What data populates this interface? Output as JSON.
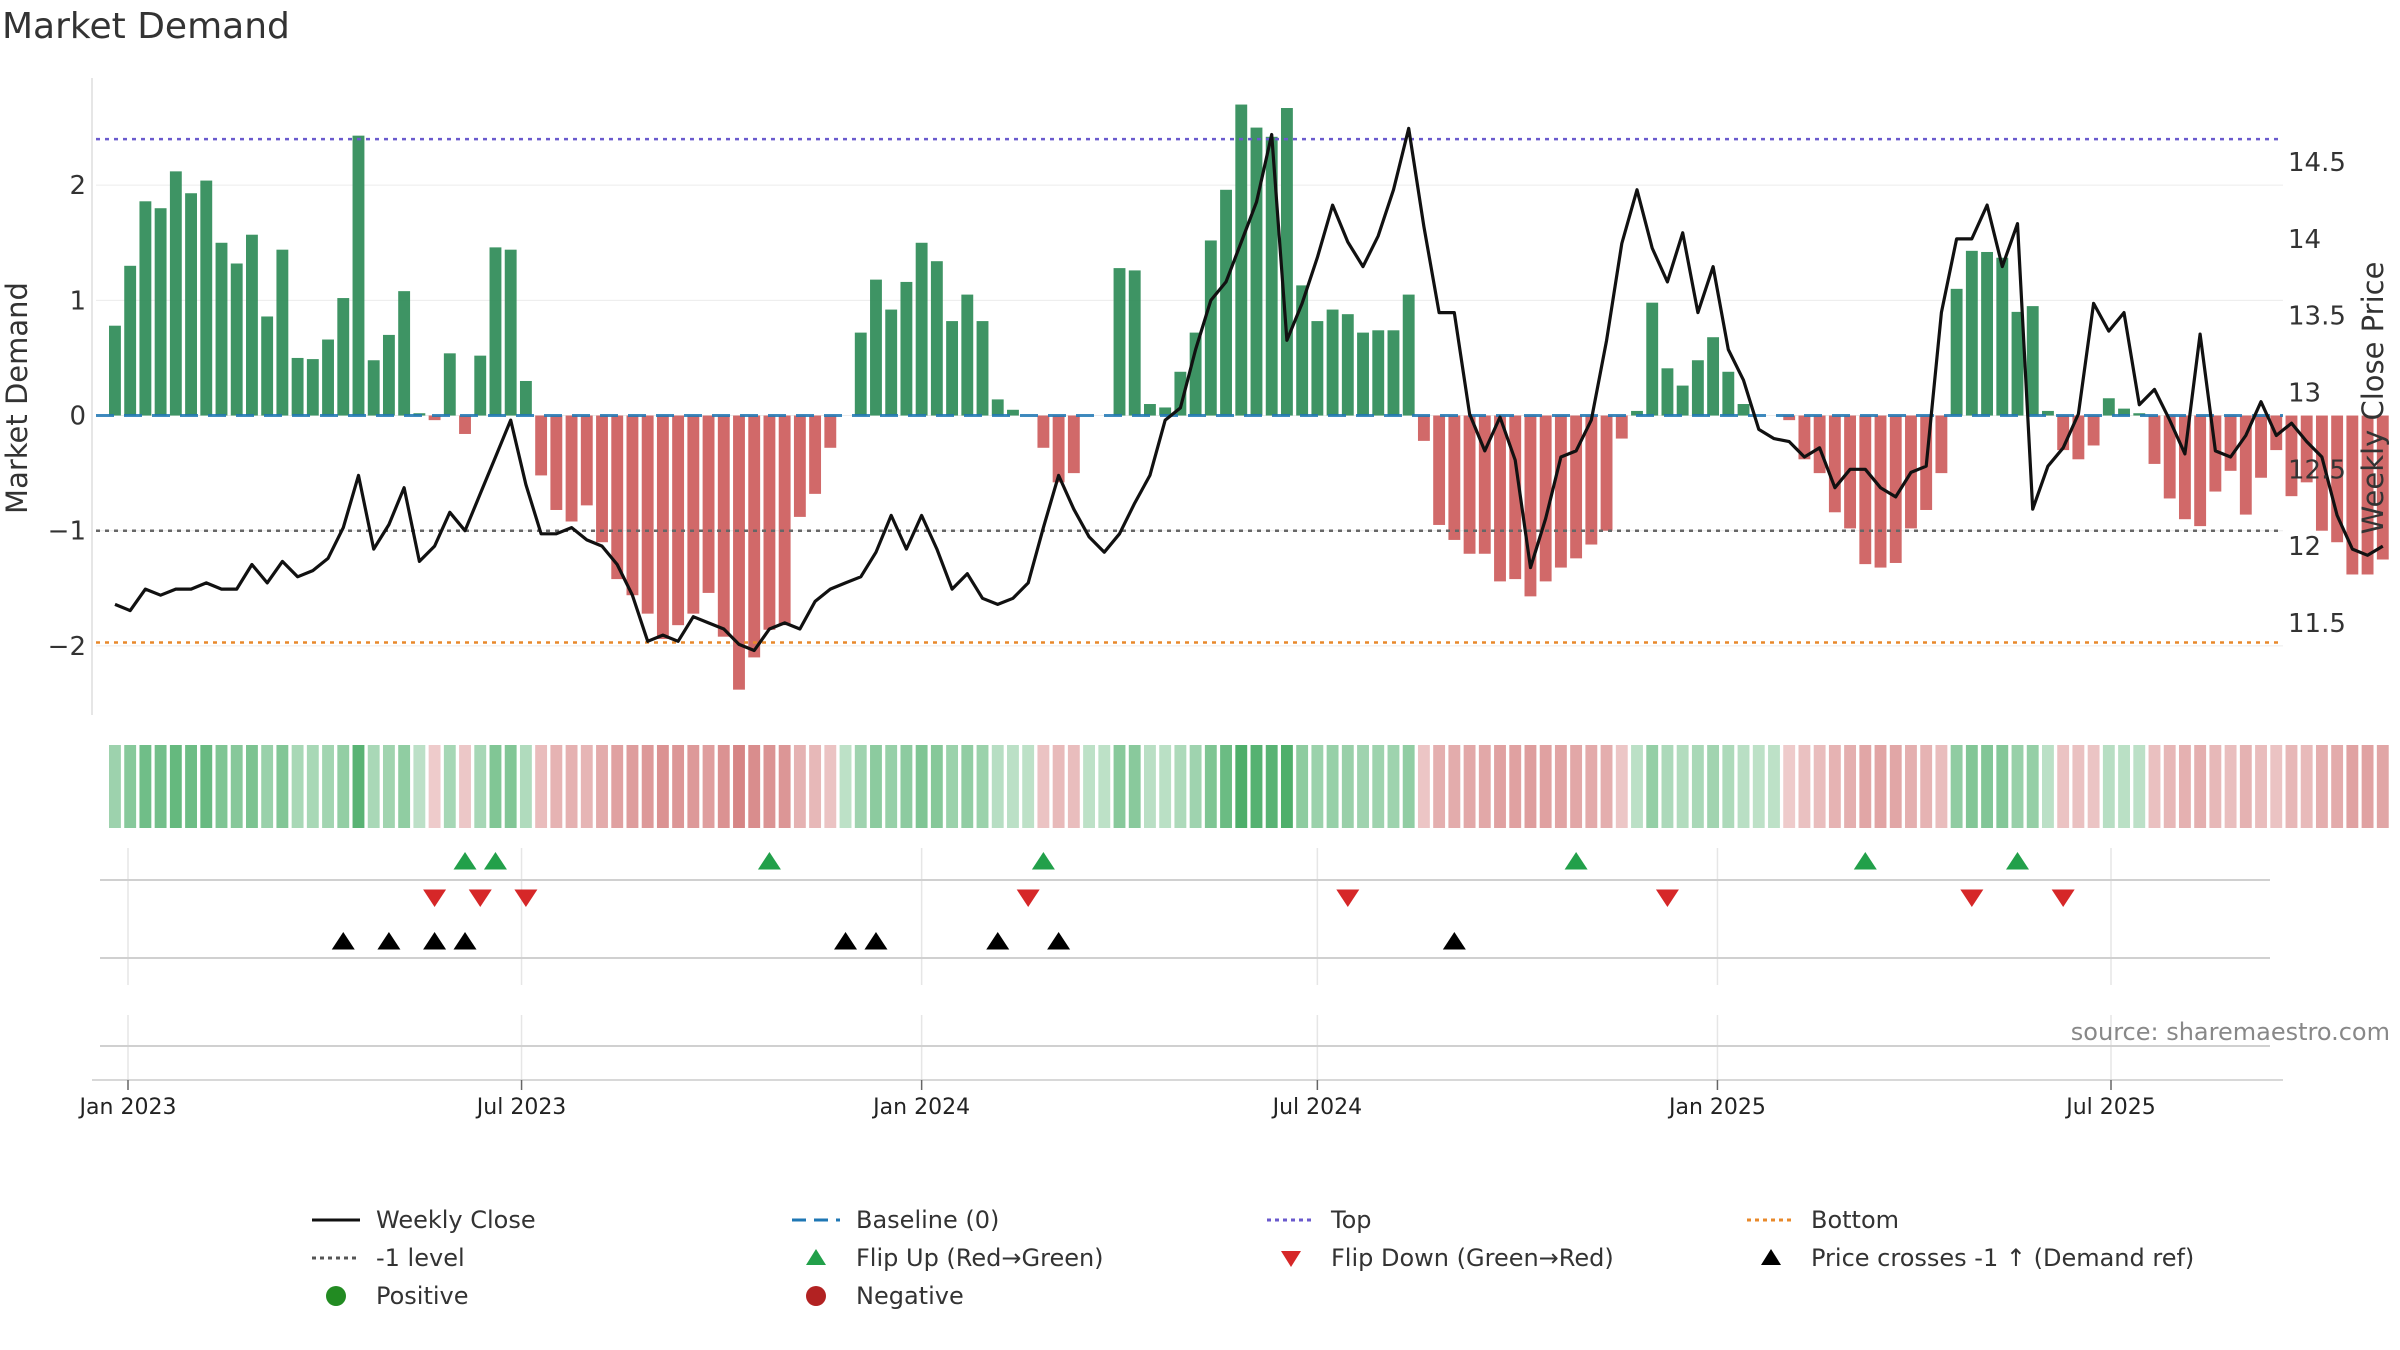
{
  "title": "Market Demand",
  "source": "source: sharemaestro.com",
  "colors": {
    "positive": "#2e8b57",
    "negative": "#cd5c5c",
    "top_line": "#6a5acd",
    "bottom_line": "#e8892b",
    "minus1_line": "#666666",
    "baseline": "#1f77b4",
    "close_line": "#111111",
    "flip_up": "#22a04a",
    "flip_down": "#d62728",
    "cross": "#000000",
    "positive_dot": "#228b22",
    "negative_dot": "#b22222"
  },
  "chart_data": {
    "type": "bar",
    "x_start": "2022-12-26",
    "x_interval_days": 7,
    "left_axis": {
      "label": "Market Demand",
      "ticks": [
        {
          "value": 2,
          "text": "2"
        },
        {
          "value": 1,
          "text": "1"
        },
        {
          "value": 0,
          "text": "0"
        },
        {
          "value": -1,
          "text": "−1"
        },
        {
          "value": -2,
          "text": "−2"
        }
      ],
      "ylim": [
        -2.6,
        3.0
      ]
    },
    "right_axis": {
      "label": "Weekly Close Price",
      "ticks": [
        "11.5",
        "12",
        "12.5",
        "13",
        "13.5",
        "14",
        "14.5"
      ],
      "ylim": [
        10.9,
        15.1
      ]
    },
    "x_ticks": [
      {
        "date": "2023-01-01",
        "text": "Jan 2023"
      },
      {
        "date": "2023-07-01",
        "text": "Jul 2023"
      },
      {
        "date": "2024-01-01",
        "text": "Jan 2024"
      },
      {
        "date": "2024-07-01",
        "text": "Jul 2024"
      },
      {
        "date": "2025-01-01",
        "text": "Jan 2025"
      },
      {
        "date": "2025-07-01",
        "text": "Jul 2025"
      }
    ],
    "reference_lines": {
      "top": 2.4,
      "bottom": -1.97,
      "minus1": -1,
      "baseline": 0
    },
    "demand": [
      0.78,
      1.3,
      1.86,
      1.8,
      2.12,
      1.93,
      2.04,
      1.5,
      1.32,
      1.57,
      0.86,
      1.44,
      0.5,
      0.49,
      0.66,
      1.02,
      2.43,
      0.48,
      0.7,
      1.08,
      0.02,
      -0.04,
      0.54,
      -0.16,
      0.52,
      1.46,
      1.44,
      0.3,
      -0.52,
      -0.82,
      -0.92,
      -0.78,
      -1.1,
      -1.42,
      -1.56,
      -1.72,
      -1.94,
      -1.82,
      -1.72,
      -1.54,
      -1.92,
      -2.38,
      -2.1,
      -1.86,
      -1.82,
      -0.88,
      -0.68,
      -0.28,
      0,
      0.72,
      1.18,
      0.92,
      1.16,
      1.5,
      1.34,
      0.82,
      1.05,
      0.82,
      0.14,
      0.05,
      0,
      -0.28,
      -0.58,
      -0.5,
      0,
      0,
      1.28,
      1.26,
      0.1,
      0.07,
      0.38,
      0.72,
      1.52,
      1.96,
      2.7,
      2.5,
      2.42,
      2.67,
      1.13,
      0.82,
      0.92,
      0.88,
      0.72,
      0.74,
      0.74,
      1.05,
      -0.22,
      -0.95,
      -1.08,
      -1.2,
      -1.2,
      -1.44,
      -1.42,
      -1.57,
      -1.44,
      -1.32,
      -1.24,
      -1.12,
      -1.0,
      -0.2,
      0.04,
      0.98,
      0.41,
      0.26,
      0.48,
      0.68,
      0.38,
      0.1,
      0,
      0,
      -0.04,
      -0.38,
      -0.5,
      -0.84,
      -0.98,
      -1.29,
      -1.32,
      -1.28,
      -0.98,
      -0.82,
      -0.5,
      1.1,
      1.43,
      1.42,
      1.37,
      0.9,
      0.95,
      0.04,
      -0.3,
      -0.38,
      -0.26,
      0.15,
      0.06,
      0.02,
      -0.42,
      -0.72,
      -0.9,
      -0.96,
      -0.66,
      -0.48,
      -0.86,
      -0.54,
      -0.3,
      -0.7,
      -0.58,
      -1.0,
      -1.1,
      -1.38,
      -1.38,
      -1.25
    ],
    "close": [
      11.62,
      11.58,
      11.72,
      11.68,
      11.72,
      11.72,
      11.76,
      11.72,
      11.72,
      11.88,
      11.76,
      11.9,
      11.8,
      11.84,
      11.92,
      12.12,
      12.46,
      11.98,
      12.14,
      12.38,
      11.9,
      12.0,
      12.22,
      12.1,
      12.34,
      12.58,
      12.82,
      12.4,
      12.08,
      12.08,
      12.12,
      12.04,
      12.0,
      11.88,
      11.68,
      11.38,
      11.42,
      11.38,
      11.54,
      11.5,
      11.46,
      11.36,
      11.32,
      11.46,
      11.5,
      11.46,
      11.64,
      11.72,
      11.76,
      11.8,
      11.96,
      12.2,
      11.98,
      12.2,
      11.98,
      11.72,
      11.82,
      11.66,
      11.62,
      11.66,
      11.76,
      12.12,
      12.46,
      12.24,
      12.06,
      11.96,
      12.08,
      12.28,
      12.46,
      12.82,
      12.9,
      13.28,
      13.6,
      13.72,
      13.98,
      14.24,
      14.68,
      13.34,
      13.58,
      13.88,
      14.22,
      13.98,
      13.82,
      14.02,
      14.32,
      14.72,
      14.08,
      13.52,
      13.52,
      12.86,
      12.62,
      12.84,
      12.56,
      11.86,
      12.18,
      12.58,
      12.62,
      12.82,
      13.34,
      13.97,
      14.32,
      13.94,
      13.72,
      14.04,
      13.52,
      13.82,
      13.28,
      13.08,
      12.76,
      12.7,
      12.68,
      12.58,
      12.64,
      12.38,
      12.5,
      12.5,
      12.38,
      12.32,
      12.48,
      12.52,
      13.52,
      14.0,
      14.0,
      14.22,
      13.82,
      14.1,
      12.24,
      12.52,
      12.64,
      12.86,
      13.58,
      13.4,
      13.52,
      12.92,
      13.02,
      12.82,
      12.6,
      13.38,
      12.62,
      12.58,
      12.72,
      12.94,
      12.72,
      12.8,
      12.68,
      12.58,
      12.2,
      11.98,
      11.94,
      12.0
    ],
    "flip_up_dates": [
      "2023-06-05",
      "2023-06-19",
      "2023-10-23",
      "2024-02-26",
      "2024-10-28",
      "2025-03-10",
      "2025-05-19"
    ],
    "flip_down_dates": [
      "2023-05-22",
      "2023-06-12",
      "2023-07-03",
      "2024-02-19",
      "2024-07-15",
      "2024-12-09",
      "2025-04-28",
      "2025-06-09"
    ],
    "cross_dates": [
      "2023-04-10",
      "2023-05-01",
      "2023-05-22",
      "2023-06-05",
      "2023-11-27",
      "2023-12-11",
      "2024-02-05",
      "2024-03-04",
      "2024-09-02"
    ]
  },
  "legend": [
    {
      "label": "Weekly Close",
      "symbol": "solid-line",
      "color": "#111111"
    },
    {
      "label": "Baseline (0)",
      "symbol": "dashed-line",
      "color": "#1f77b4"
    },
    {
      "label": "Top",
      "symbol": "dotted-line",
      "color": "#6a5acd"
    },
    {
      "label": "Bottom",
      "symbol": "dotted-line",
      "color": "#e8892b"
    },
    {
      "label": "-1 level",
      "symbol": "dotted-line",
      "color": "#555555"
    },
    {
      "label": "Flip Up (Red→Green)",
      "symbol": "triangle-up",
      "color": "#22a04a"
    },
    {
      "label": "Flip Down (Green→Red)",
      "symbol": "triangle-down",
      "color": "#d62728"
    },
    {
      "label": "Price crosses -1 ↑ (Demand ref)",
      "symbol": "triangle-up",
      "color": "#000000"
    },
    {
      "label": "Positive",
      "symbol": "circle",
      "color": "#228b22"
    },
    {
      "label": "Negative",
      "symbol": "circle",
      "color": "#b22222"
    }
  ]
}
